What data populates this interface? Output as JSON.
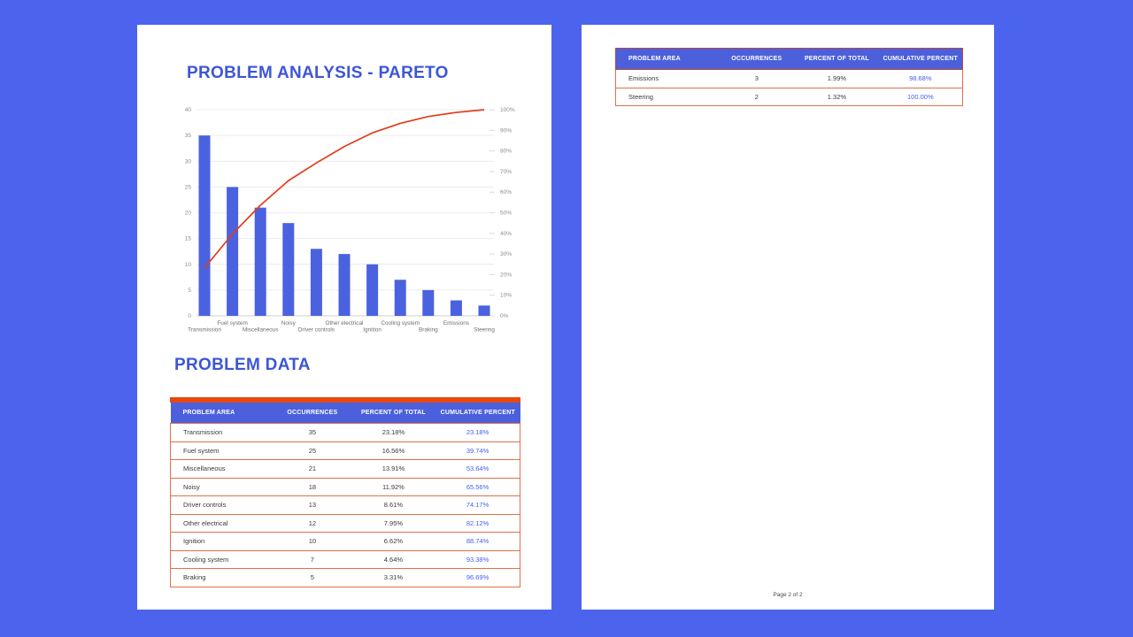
{
  "colors": {
    "background": "#4C63EE",
    "page": "#FFFFFF",
    "title": "#3D56D6",
    "table_header_bg": "#4C60DC",
    "table_header_text": "#FFFFFF",
    "table_top_bar": "#E8480E",
    "row_border": "#E0714A",
    "page2_header_border": "#C24532",
    "cumulative_text": "#4460E8",
    "bar": "#4A62E0",
    "line": "#E03C1A",
    "axis_text": "#8C8C8C",
    "grid": "#ECECEC",
    "baseline": "#CFCFCF"
  },
  "page1": {
    "chart_title": "PROBLEM ANALYSIS - PARETO",
    "data_title": "PROBLEM DATA",
    "table": {
      "headers": [
        "PROBLEM AREA",
        "OCCURRENCES",
        "PERCENT OF TOTAL",
        "CUMULATIVE PERCENT"
      ],
      "rows": [
        [
          "Transmission",
          "35",
          "23.18%",
          "23.18%"
        ],
        [
          "Fuel system",
          "25",
          "16.56%",
          "39.74%"
        ],
        [
          "Miscellaneous",
          "21",
          "13.91%",
          "53.64%"
        ],
        [
          "Noisy",
          "18",
          "11.92%",
          "65.56%"
        ],
        [
          "Driver controls",
          "13",
          "8.61%",
          "74.17%"
        ],
        [
          "Other electrical",
          "12",
          "7.95%",
          "82.12%"
        ],
        [
          "Ignition",
          "10",
          "6.62%",
          "88.74%"
        ],
        [
          "Cooling system",
          "7",
          "4.64%",
          "93.38%"
        ],
        [
          "Braking",
          "5",
          "3.31%",
          "96.69%"
        ]
      ]
    }
  },
  "page2": {
    "table": {
      "headers": [
        "PROBLEM AREA",
        "OCCURRENCES",
        "PERCENT OF TOTAL",
        "CUMULATIVE PERCENT"
      ],
      "rows": [
        [
          "Emissions",
          "3",
          "1.99%",
          "98.68%"
        ],
        [
          "Steering",
          "2",
          "1.32%",
          "100.00%"
        ]
      ]
    },
    "footer": "Page 2 of 2"
  },
  "chart_data": {
    "type": "bar",
    "subtype": "pareto",
    "title": "PROBLEM ANALYSIS - PARETO",
    "categories": [
      "Transmission",
      "Fuel system",
      "Miscellaneous",
      "Noisy",
      "Driver controls",
      "Other electrical",
      "Ignition",
      "Cooling system",
      "Braking",
      "Emissions",
      "Steering"
    ],
    "series": [
      {
        "name": "Occurrences",
        "type": "bar",
        "values": [
          35,
          25,
          21,
          18,
          13,
          12,
          10,
          7,
          5,
          3,
          2
        ]
      },
      {
        "name": "Cumulative percent",
        "type": "line",
        "values": [
          23.18,
          39.74,
          53.64,
          65.56,
          74.17,
          82.12,
          88.74,
          93.38,
          96.69,
          98.68,
          100.0
        ]
      }
    ],
    "left_axis": {
      "min": 0,
      "max": 40,
      "step": 5
    },
    "right_axis": {
      "min": 0,
      "max": 100,
      "step": 10,
      "suffix": "%"
    },
    "grid": true,
    "legend": "none",
    "xlabel": "",
    "ylabel": ""
  }
}
